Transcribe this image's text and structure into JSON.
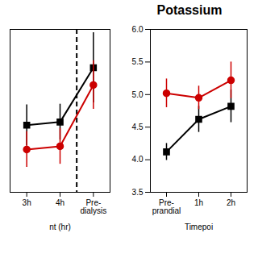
{
  "chart_data": [
    {
      "type": "line",
      "categories": [
        "3h",
        "4h",
        "Pre-\ndialysis"
      ],
      "xlabel": "nt (hr)",
      "ylim": [
        3.8,
        6.35
      ],
      "tick_labels": "x",
      "series": [
        {
          "color": "#000000",
          "marker": "square",
          "values": [
            4.85,
            4.9,
            5.75
          ],
          "errors": [
            0.32,
            0.28,
            0.55
          ]
        },
        {
          "color": "#cc0000",
          "marker": "circle",
          "values": [
            4.47,
            4.52,
            5.48
          ],
          "errors": [
            0.28,
            0.28,
            0.38
          ]
        }
      ],
      "vlines": [
        {
          "between": [
            "4h",
            "Pre-\ndialysis"
          ],
          "color": "#000000",
          "line_style": "dashed"
        }
      ]
    },
    {
      "type": "line",
      "title": "Potassium",
      "categories": [
        "Pre-\nprandial",
        "1h",
        "2h"
      ],
      "xlabel": "Timepoi",
      "ylim": [
        3.5,
        6.0
      ],
      "yticks": [
        {
          "value": 3.5,
          "label": "3.5"
        },
        {
          "value": 4.0,
          "label": "4.0"
        },
        4.5,
        {
          "value": 5.0,
          "label": "5.0"
        },
        5.5,
        {
          "value": 6.0,
          "label": "6.0"
        }
      ],
      "series": [
        {
          "color": "#000000",
          "marker": "square",
          "values": [
            4.12,
            4.62,
            4.82
          ],
          "errors": [
            0.13,
            0.2,
            0.25
          ]
        },
        {
          "color": "#cc0000",
          "marker": "circle",
          "values": [
            5.02,
            4.95,
            5.22
          ],
          "errors": [
            0.22,
            0.18,
            0.28
          ]
        }
      ]
    }
  ]
}
